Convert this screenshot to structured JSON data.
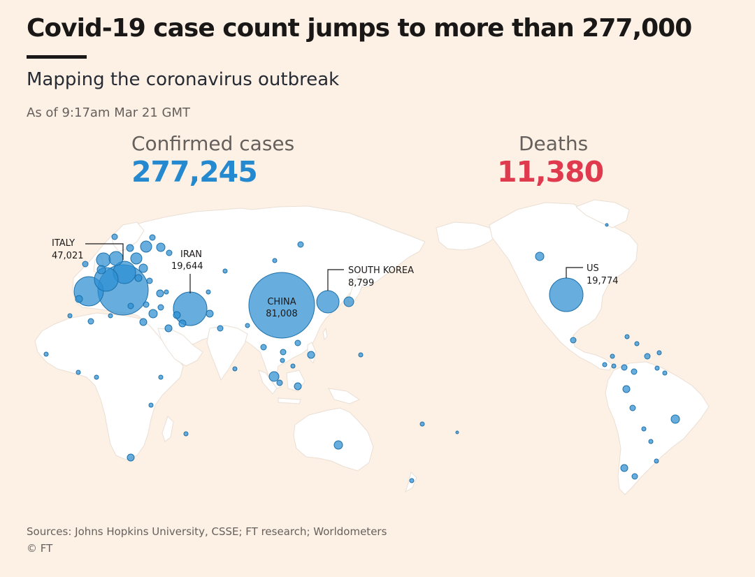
{
  "header": {
    "title": "Covid-19 case count jumps to more than 277,000",
    "subtitle": "Mapping the coronavirus outbreak",
    "timestamp": "As of 9:17am Mar 21 GMT"
  },
  "stats": {
    "cases_label": "Confirmed cases",
    "cases_value": "277,245",
    "deaths_label": "Deaths",
    "deaths_value": "11,380"
  },
  "colors": {
    "background": "#fdf1e6",
    "land": "#ffffff",
    "border": "#e7ddd2",
    "bubble": "#2c8fd3",
    "bubble_edge": "#1d6fa8",
    "cases": "#2589d0",
    "deaths": "#e03a4e"
  },
  "map": {
    "encoding": "bubble area proportional to confirmed cases",
    "labelled_countries": [
      {
        "name": "ITALY",
        "cases": "47,021",
        "value": 47021
      },
      {
        "name": "IRAN",
        "cases": "19,644",
        "value": 19644
      },
      {
        "name": "CHINA",
        "cases": "81,008",
        "value": 81008
      },
      {
        "name": "SOUTH KOREA",
        "cases": "8,799",
        "value": 8799
      },
      {
        "name": "US",
        "cases": "19,774",
        "value": 19774
      }
    ]
  },
  "footer": {
    "sources": "Sources: Johns Hopkins University, CSSE; FT research; Worldometers",
    "credit": "© FT"
  }
}
